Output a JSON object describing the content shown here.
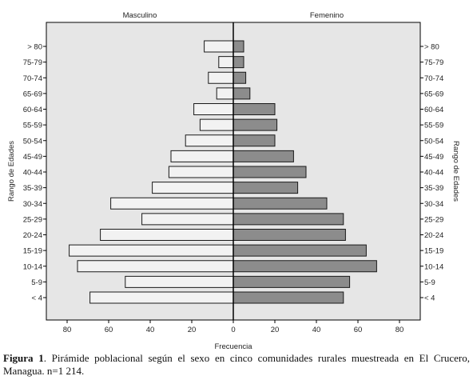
{
  "chart_data": {
    "type": "bar",
    "orientation": "horizontal-pyramid",
    "left_title": "Masculino",
    "right_title": "Femenino",
    "xlabel": "Frecuencia",
    "ylabel": "Rango de Edades",
    "xlim": [
      -90,
      90
    ],
    "xticks": [
      80,
      60,
      40,
      20,
      0,
      20,
      40,
      60,
      80
    ],
    "grid": false,
    "categories": [
      "> 80",
      "75-79",
      "70-74",
      "65-69",
      "60-64",
      "55-59",
      "50-54",
      "45-49",
      "40-44",
      "35-39",
      "30-34",
      "25-29",
      "20-24",
      "15-19",
      "10-14",
      "5-9",
      "< 4"
    ],
    "series": [
      {
        "name": "Masculino",
        "color": "#f2f2f2",
        "values": [
          14,
          7,
          12,
          8,
          19,
          16,
          23,
          30,
          31,
          39,
          59,
          44,
          64,
          79,
          75,
          52,
          69
        ]
      },
      {
        "name": "Femenino",
        "color": "#8c8c8c",
        "values": [
          5,
          5,
          6,
          8,
          20,
          21,
          20,
          29,
          35,
          31,
          45,
          53,
          54,
          64,
          69,
          56,
          53
        ]
      }
    ]
  },
  "caption": {
    "label": "Figura 1",
    "text": ". Pirámide poblacional según el sexo en cinco comunidades rurales muestreada en El Crucero, Managua. n=1 214."
  },
  "colors": {
    "plot_bg": "#e6e6e6",
    "axis": "#000000",
    "bar_stroke": "#1a1a1a"
  }
}
